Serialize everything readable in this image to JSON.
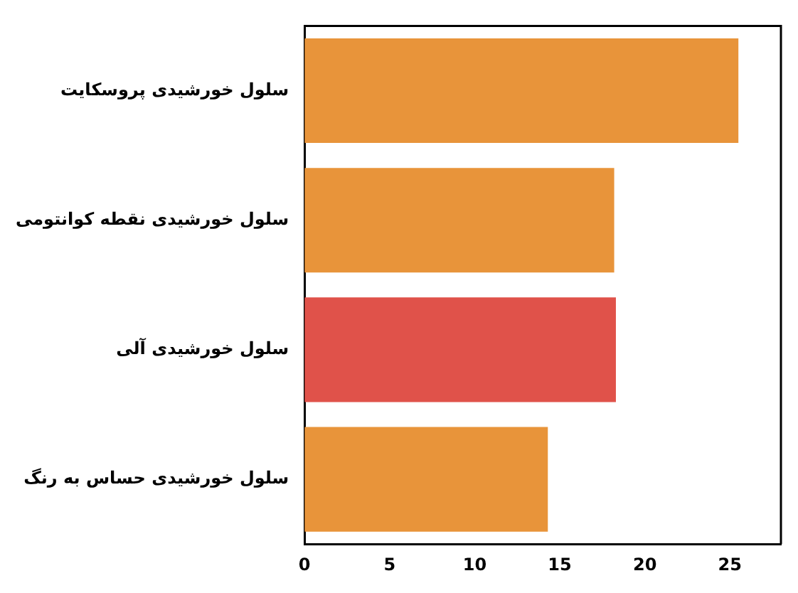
{
  "chart_data": {
    "type": "bar",
    "orientation": "horizontal",
    "categories": [
      "سلول خورشیدی پروسکایت",
      "سلول خورشیدی نقطه کوانتومی",
      "سلول خورشیدی آلی",
      "سلول خورشیدی حساس به رنگ"
    ],
    "values": [
      25.5,
      18.2,
      18.3,
      14.3
    ],
    "colors": [
      "#e8943a",
      "#e8943a",
      "#e0524a",
      "#e8943a"
    ],
    "xlim": [
      0,
      28
    ],
    "xticks": [
      0,
      5,
      10,
      15,
      20,
      25
    ],
    "grid": false,
    "legend": false
  }
}
